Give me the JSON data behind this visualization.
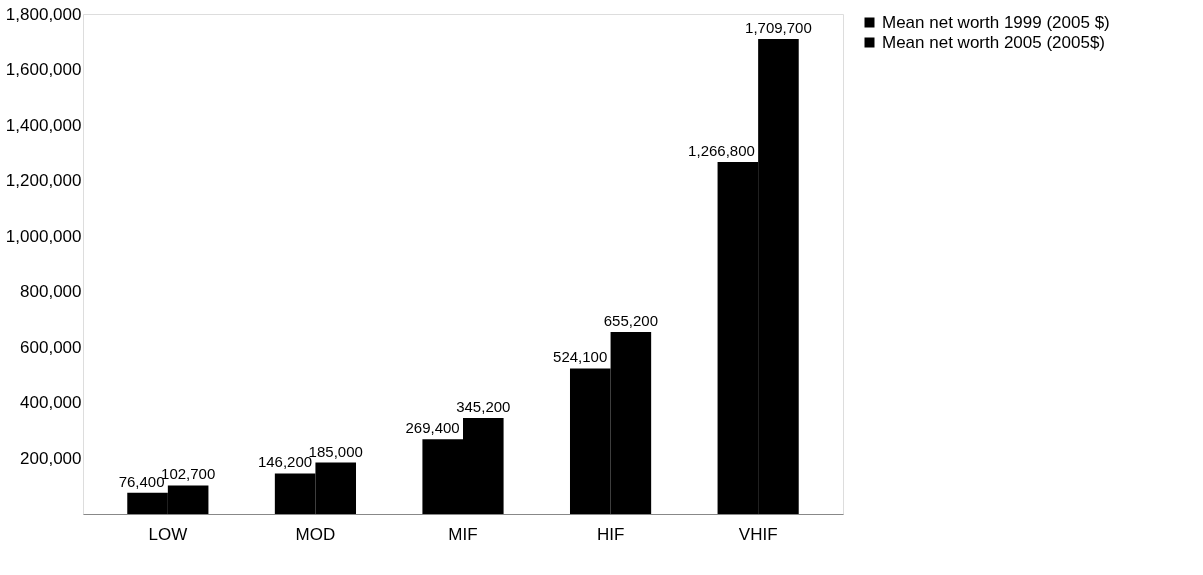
{
  "chart_data": {
    "type": "bar",
    "categories": [
      "LOW",
      "MOD",
      "MIF",
      "HIF",
      "VHIF"
    ],
    "series": [
      {
        "name": "Mean net worth 1999 (2005 $)",
        "color": "#000000",
        "values": [
          76400,
          146200,
          269400,
          524100,
          1266800
        ],
        "value_labels": [
          "76,400",
          "146,200",
          "269,400",
          "524,100",
          "1,266,800"
        ]
      },
      {
        "name": "Mean net worth 2005 (2005$)",
        "color": "#000000",
        "values": [
          102700,
          185000,
          345200,
          655200,
          1709700
        ],
        "value_labels": [
          "102,700",
          "185,000",
          "345,200",
          "655,200",
          "1,709,700"
        ]
      }
    ],
    "ylim": [
      0,
      1800000
    ],
    "yticks": [
      {
        "value": 200000,
        "label": "200,000"
      },
      {
        "value": 400000,
        "label": "400,000"
      },
      {
        "value": 600000,
        "label": "600,000"
      },
      {
        "value": 800000,
        "label": "800,000"
      },
      {
        "value": 1000000,
        "label": "1,000,000"
      },
      {
        "value": 1200000,
        "label": "1,200,000"
      },
      {
        "value": 1400000,
        "label": "1,400,000"
      },
      {
        "value": 1600000,
        "label": "1,600,000"
      },
      {
        "value": 1800000,
        "label": "1,800,000"
      }
    ],
    "grid": false,
    "legend": "right"
  }
}
